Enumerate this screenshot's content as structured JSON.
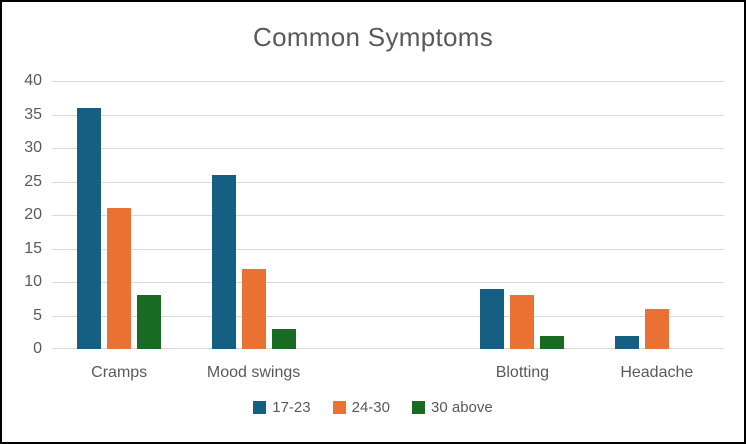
{
  "chart_data": {
    "type": "bar",
    "title": "Common Symptoms",
    "categories": [
      "Cramps",
      "Mood swings",
      "",
      "Blotting",
      "Headache"
    ],
    "series": [
      {
        "name": "17-23",
        "color": "#156082",
        "values": [
          36,
          26,
          null,
          9,
          2
        ]
      },
      {
        "name": "24-30",
        "color": "#E97132",
        "values": [
          21,
          12,
          null,
          8,
          6
        ]
      },
      {
        "name": "30 above",
        "color": "#196B24",
        "values": [
          8,
          3,
          null,
          2,
          0
        ]
      }
    ],
    "xlabel": "",
    "ylabel": "",
    "ylim": [
      0,
      40
    ],
    "ytick_step": 5,
    "grid": true,
    "legend_position": "bottom"
  },
  "colors": {
    "text": "#595959",
    "grid": "#D9D9D9",
    "border": "#000000",
    "background": "#FFFFFF"
  }
}
